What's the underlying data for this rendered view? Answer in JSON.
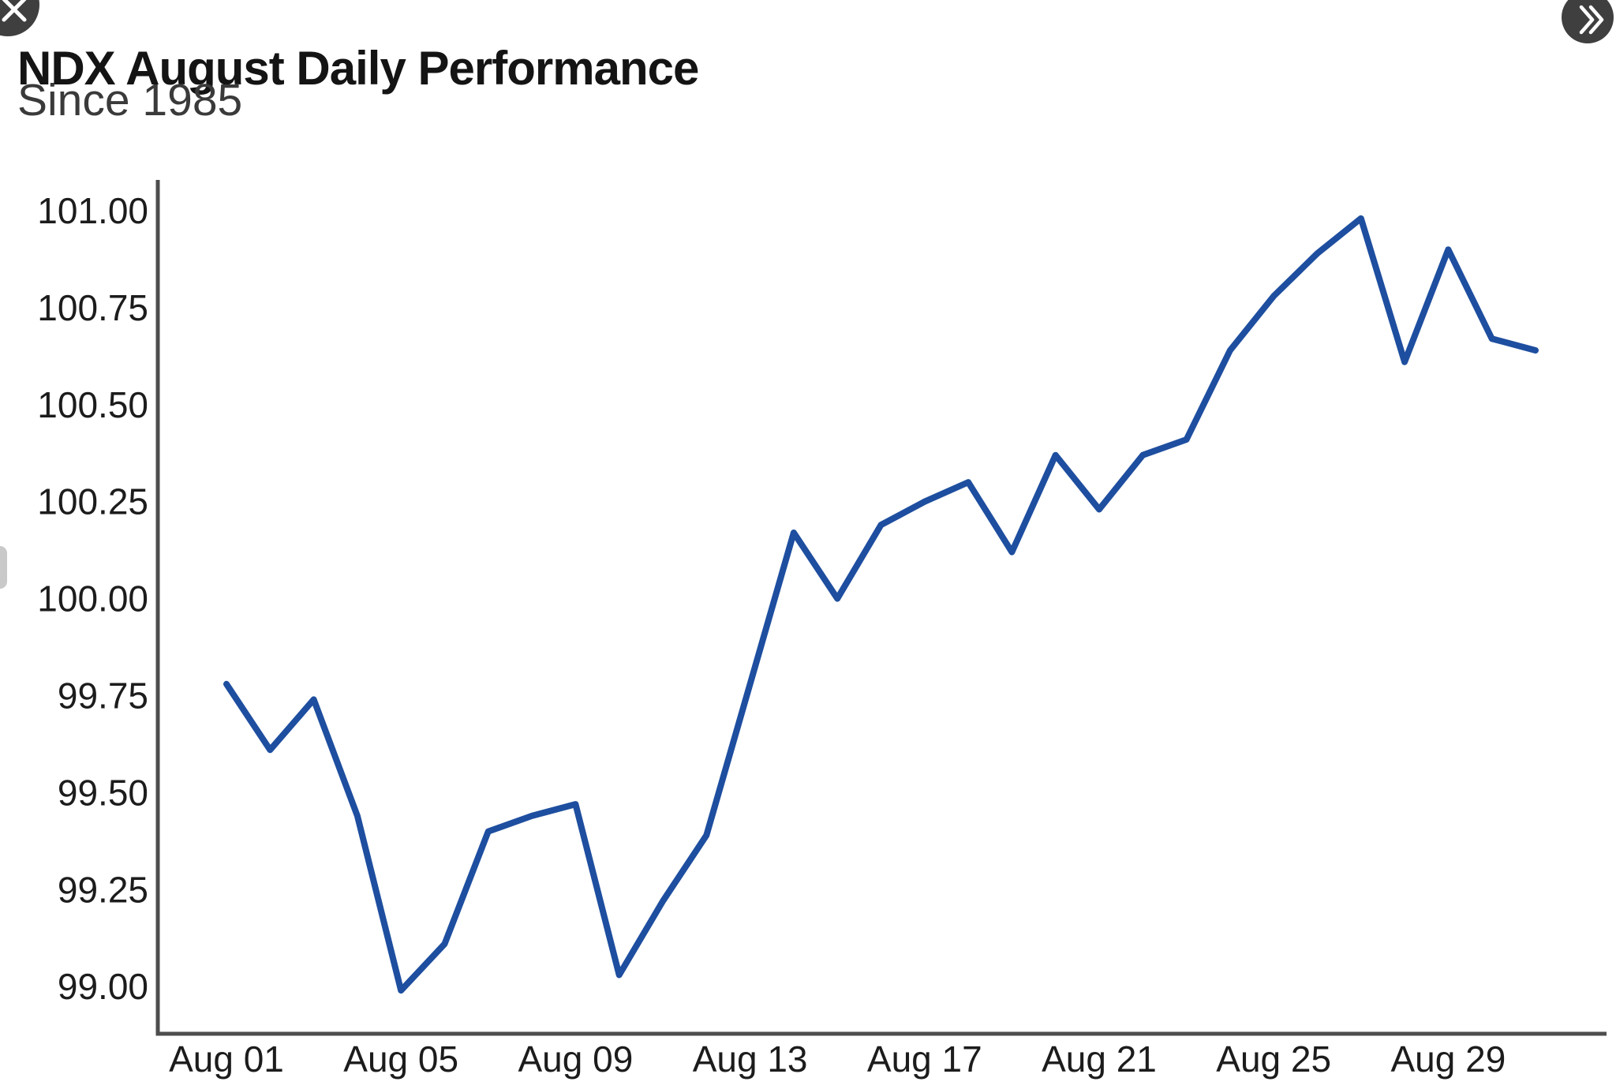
{
  "header": {
    "title": "NDX August Daily Performance",
    "subtitle": "Since 1985"
  },
  "nav": {
    "icons": {
      "top_left": "close",
      "top_right": "double-chevron-right"
    }
  },
  "chart_data": {
    "type": "line",
    "title": "NDX August Daily Performance",
    "subtitle": "Since 1985",
    "xlabel": "",
    "ylabel": "",
    "grid": false,
    "legend": "none",
    "ylim": [
      98.88,
      101.08
    ],
    "x_range": [
      "Aug 01",
      "Aug 31"
    ],
    "categories": [
      "Aug 01",
      "Aug 02",
      "Aug 03",
      "Aug 04",
      "Aug 05",
      "Aug 06",
      "Aug 07",
      "Aug 08",
      "Aug 09",
      "Aug 10",
      "Aug 11",
      "Aug 12",
      "Aug 13",
      "Aug 14",
      "Aug 15",
      "Aug 16",
      "Aug 17",
      "Aug 18",
      "Aug 19",
      "Aug 20",
      "Aug 21",
      "Aug 22",
      "Aug 23",
      "Aug 24",
      "Aug 25",
      "Aug 26",
      "Aug 27",
      "Aug 28",
      "Aug 29",
      "Aug 30",
      "Aug 31"
    ],
    "values": [
      99.78,
      99.61,
      99.74,
      99.44,
      98.99,
      99.11,
      99.4,
      99.44,
      99.47,
      99.03,
      99.22,
      99.39,
      99.78,
      100.17,
      100.0,
      100.19,
      100.25,
      100.3,
      100.12,
      100.37,
      100.23,
      100.37,
      100.41,
      100.64,
      100.78,
      100.89,
      100.98,
      100.61,
      100.9,
      100.67,
      100.64
    ],
    "ytick_labels": [
      "101.00",
      "100.75",
      "100.50",
      "100.25",
      "100.00",
      "99.75",
      "99.50",
      "99.25",
      "99.00"
    ],
    "yticks": [
      101.0,
      100.75,
      100.5,
      100.25,
      100.0,
      99.75,
      99.5,
      99.25,
      99.0
    ],
    "xtick_days": [
      1,
      5,
      9,
      13,
      17,
      21,
      25,
      29
    ],
    "xtick_labels": [
      "Aug 01",
      "Aug 05",
      "Aug 09",
      "Aug 13",
      "Aug 17",
      "Aug 21",
      "Aug 25",
      "Aug 29"
    ],
    "colors": {
      "line": "#1e4e9f",
      "axis": "#4d4d4d",
      "tick_text": "#1c1c1c"
    }
  }
}
